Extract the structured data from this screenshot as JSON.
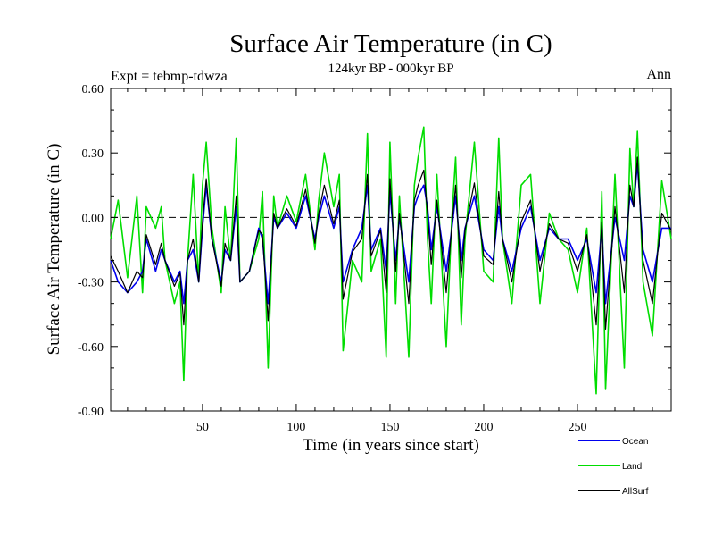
{
  "header": {
    "title": "Surface Air Temperature (in C)",
    "subtitle": "124kyr BP - 000kyr BP",
    "expt_label": "Expt = tebmp-tdwza",
    "season_label": "Ann"
  },
  "chart_data": {
    "type": "line",
    "title": "Surface Air Temperature (in C)",
    "subtitle": "124kyr BP - 000kyr BP",
    "xlabel": "Time (in years since start)",
    "ylabel": "Surface Air Temperature (in C)",
    "xlim": [
      1,
      300
    ],
    "ylim": [
      -0.9,
      0.6
    ],
    "x_ticks": [
      50,
      100,
      150,
      200,
      250
    ],
    "x_tick_labels": [
      "50",
      "100",
      "150",
      "200",
      "250"
    ],
    "y_ticks": [
      -0.9,
      -0.6,
      -0.3,
      0.0,
      0.3,
      0.6
    ],
    "y_tick_labels": [
      "-0.90",
      "-0.60",
      "-0.30",
      "0.00",
      "0.30",
      "0.60"
    ],
    "reference_line": 0.0,
    "legend_position": "bottom-right",
    "series": [
      {
        "name": "Land",
        "color": "#00dd00",
        "x": [
          1,
          5,
          10,
          15,
          18,
          20,
          25,
          28,
          30,
          35,
          38,
          40,
          42,
          45,
          48,
          50,
          52,
          55,
          60,
          62,
          65,
          68,
          70,
          75,
          80,
          82,
          85,
          88,
          90,
          95,
          100,
          105,
          110,
          112,
          115,
          120,
          123,
          125,
          130,
          135,
          138,
          140,
          145,
          148,
          150,
          153,
          155,
          160,
          163,
          165,
          168,
          170,
          172,
          175,
          180,
          183,
          185,
          188,
          190,
          195,
          200,
          205,
          208,
          210,
          215,
          220,
          225,
          230,
          235,
          240,
          245,
          250,
          255,
          260,
          263,
          265,
          270,
          275,
          278,
          280,
          282,
          285,
          290,
          295,
          300
        ],
        "values": [
          -0.1,
          0.08,
          -0.28,
          0.1,
          -0.35,
          0.05,
          -0.05,
          0.05,
          -0.2,
          -0.4,
          -0.3,
          -0.76,
          -0.2,
          0.2,
          -0.3,
          0.15,
          0.35,
          -0.05,
          -0.35,
          0.05,
          -0.2,
          0.37,
          -0.3,
          -0.25,
          -0.1,
          0.12,
          -0.7,
          0.1,
          -0.05,
          0.1,
          -0.02,
          0.2,
          -0.15,
          0.08,
          0.3,
          0.05,
          0.2,
          -0.62,
          -0.2,
          -0.3,
          0.39,
          -0.25,
          -0.1,
          -0.65,
          0.35,
          -0.4,
          0.1,
          -0.65,
          0.15,
          0.28,
          0.42,
          -0.1,
          -0.4,
          0.2,
          -0.6,
          0.0,
          0.28,
          -0.5,
          -0.1,
          0.35,
          -0.25,
          -0.3,
          0.37,
          -0.1,
          -0.4,
          0.15,
          0.2,
          -0.4,
          0.02,
          -0.1,
          -0.15,
          -0.35,
          -0.05,
          -0.82,
          0.12,
          -0.8,
          0.2,
          -0.7,
          0.32,
          0.05,
          0.4,
          -0.3,
          -0.55,
          0.17,
          -0.1
        ]
      },
      {
        "name": "Ocean",
        "color": "#0000ee",
        "x": [
          1,
          5,
          10,
          15,
          18,
          20,
          25,
          28,
          30,
          35,
          38,
          40,
          42,
          45,
          48,
          50,
          52,
          55,
          60,
          62,
          65,
          68,
          70,
          75,
          80,
          82,
          85,
          88,
          90,
          95,
          100,
          105,
          110,
          112,
          115,
          120,
          123,
          125,
          130,
          135,
          138,
          140,
          145,
          148,
          150,
          153,
          155,
          160,
          163,
          165,
          168,
          170,
          172,
          175,
          180,
          183,
          185,
          188,
          190,
          195,
          200,
          205,
          208,
          210,
          215,
          220,
          225,
          230,
          235,
          240,
          245,
          250,
          255,
          260,
          263,
          265,
          270,
          275,
          278,
          280,
          282,
          285,
          290,
          295,
          300
        ],
        "values": [
          -0.2,
          -0.3,
          -0.35,
          -0.3,
          -0.25,
          -0.1,
          -0.25,
          -0.15,
          -0.2,
          -0.3,
          -0.25,
          -0.4,
          -0.2,
          -0.15,
          -0.3,
          -0.05,
          0.15,
          -0.1,
          -0.3,
          -0.15,
          -0.2,
          0.05,
          -0.3,
          -0.25,
          -0.05,
          -0.1,
          -0.4,
          0.0,
          -0.05,
          0.02,
          -0.05,
          0.1,
          -0.1,
          0.0,
          0.1,
          -0.05,
          0.05,
          -0.3,
          -0.15,
          -0.05,
          0.15,
          -0.15,
          -0.05,
          -0.25,
          0.12,
          -0.2,
          0.0,
          -0.3,
          0.05,
          0.1,
          0.15,
          0.05,
          -0.15,
          0.05,
          -0.25,
          -0.05,
          0.1,
          -0.2,
          -0.05,
          0.1,
          -0.15,
          -0.2,
          0.05,
          -0.1,
          -0.25,
          -0.05,
          0.05,
          -0.2,
          -0.05,
          -0.1,
          -0.1,
          -0.2,
          -0.1,
          -0.35,
          -0.05,
          -0.4,
          0.0,
          -0.2,
          0.1,
          0.05,
          0.25,
          -0.15,
          -0.3,
          -0.05,
          -0.05
        ]
      },
      {
        "name": "AllSurf",
        "color": "#000000",
        "x": [
          1,
          5,
          10,
          15,
          18,
          20,
          25,
          28,
          30,
          35,
          38,
          40,
          42,
          45,
          48,
          50,
          52,
          55,
          60,
          62,
          65,
          68,
          70,
          75,
          80,
          82,
          85,
          88,
          90,
          95,
          100,
          105,
          110,
          112,
          115,
          120,
          123,
          125,
          130,
          135,
          138,
          140,
          145,
          148,
          150,
          153,
          155,
          160,
          163,
          165,
          168,
          170,
          172,
          175,
          180,
          183,
          185,
          188,
          190,
          195,
          200,
          205,
          208,
          210,
          215,
          220,
          225,
          230,
          235,
          240,
          245,
          250,
          255,
          260,
          263,
          265,
          270,
          275,
          278,
          280,
          282,
          285,
          290,
          295,
          300
        ],
        "values": [
          -0.18,
          -0.25,
          -0.35,
          -0.25,
          -0.28,
          -0.08,
          -0.22,
          -0.12,
          -0.2,
          -0.32,
          -0.26,
          -0.5,
          -0.2,
          -0.1,
          -0.3,
          -0.02,
          0.18,
          -0.1,
          -0.32,
          -0.12,
          -0.2,
          0.1,
          -0.3,
          -0.25,
          -0.06,
          -0.08,
          -0.48,
          0.02,
          -0.05,
          0.04,
          -0.04,
          0.13,
          -0.12,
          0.02,
          0.15,
          -0.03,
          0.08,
          -0.38,
          -0.16,
          -0.1,
          0.2,
          -0.18,
          -0.06,
          -0.35,
          0.18,
          -0.25,
          0.02,
          -0.4,
          0.08,
          0.15,
          0.22,
          0.02,
          -0.22,
          0.08,
          -0.35,
          -0.04,
          0.15,
          -0.28,
          -0.06,
          0.16,
          -0.18,
          -0.22,
          0.12,
          -0.1,
          -0.3,
          -0.02,
          0.08,
          -0.25,
          -0.03,
          -0.1,
          -0.12,
          -0.25,
          -0.08,
          -0.5,
          -0.02,
          -0.52,
          0.05,
          -0.35,
          0.15,
          0.05,
          0.28,
          -0.2,
          -0.4,
          0.02,
          -0.06
        ]
      }
    ]
  }
}
